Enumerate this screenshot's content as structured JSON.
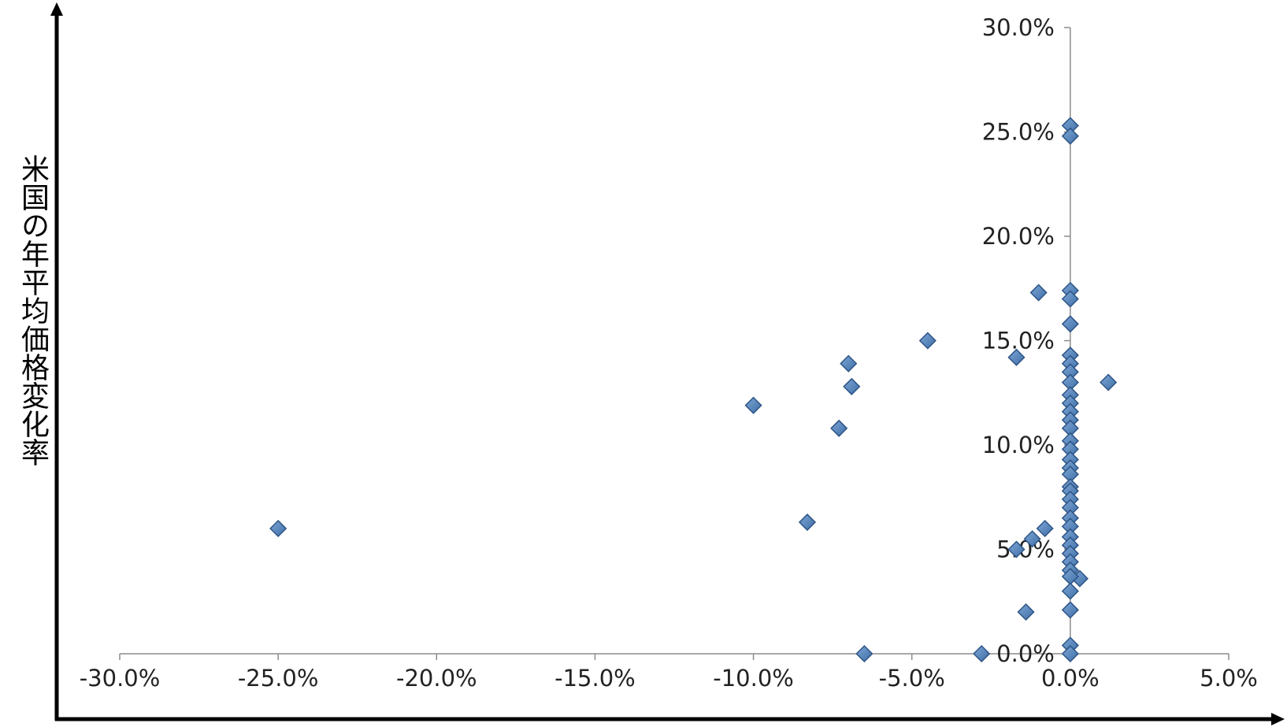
{
  "chart_data": {
    "type": "scatter",
    "title": "",
    "xlabel": "",
    "ylabel": "米国の年平均価格変化率",
    "xlim": [
      -30,
      5
    ],
    "ylim": [
      0,
      30
    ],
    "x_ticks": [
      "-30.0%",
      "-25.0%",
      "-20.0%",
      "-15.0%",
      "-10.0%",
      "-5.0%",
      "0.0%",
      "5.0%"
    ],
    "y_ticks": [
      "0.0%",
      "5.0%",
      "10.0%",
      "15.0%",
      "20.0%",
      "25.0%",
      "30.0%"
    ],
    "grid": false,
    "legend": "none",
    "marker_color": "#4f81bd",
    "points": [
      {
        "x": -25.0,
        "y": 6.0
      },
      {
        "x": -10.0,
        "y": 11.9
      },
      {
        "x": -8.3,
        "y": 6.3
      },
      {
        "x": -7.3,
        "y": 10.8
      },
      {
        "x": -7.0,
        "y": 13.9
      },
      {
        "x": -6.9,
        "y": 12.8
      },
      {
        "x": -6.5,
        "y": 0.0
      },
      {
        "x": -4.5,
        "y": 15.0
      },
      {
        "x": -2.8,
        "y": 0.0
      },
      {
        "x": -1.7,
        "y": 14.2
      },
      {
        "x": -1.7,
        "y": 5.0
      },
      {
        "x": -1.4,
        "y": 2.0
      },
      {
        "x": -1.0,
        "y": 17.3
      },
      {
        "x": -1.2,
        "y": 5.5
      },
      {
        "x": -0.8,
        "y": 6.0
      },
      {
        "x": 1.2,
        "y": 13.0
      },
      {
        "x": 0.3,
        "y": 3.6
      },
      {
        "x": 0.0,
        "y": 25.3
      },
      {
        "x": 0.0,
        "y": 24.8
      },
      {
        "x": 0.0,
        "y": 17.4
      },
      {
        "x": 0.0,
        "y": 17.0
      },
      {
        "x": 0.0,
        "y": 15.8
      },
      {
        "x": 0.0,
        "y": 14.3
      },
      {
        "x": 0.0,
        "y": 13.9
      },
      {
        "x": 0.0,
        "y": 13.5
      },
      {
        "x": 0.0,
        "y": 13.0
      },
      {
        "x": 0.0,
        "y": 12.4
      },
      {
        "x": 0.0,
        "y": 12.0
      },
      {
        "x": 0.0,
        "y": 11.6
      },
      {
        "x": 0.0,
        "y": 11.2
      },
      {
        "x": 0.0,
        "y": 10.8
      },
      {
        "x": 0.0,
        "y": 10.2
      },
      {
        "x": 0.0,
        "y": 9.8
      },
      {
        "x": 0.0,
        "y": 9.3
      },
      {
        "x": 0.0,
        "y": 8.9
      },
      {
        "x": 0.0,
        "y": 8.6
      },
      {
        "x": 0.0,
        "y": 8.0
      },
      {
        "x": 0.0,
        "y": 7.8
      },
      {
        "x": 0.0,
        "y": 7.4
      },
      {
        "x": 0.0,
        "y": 7.0
      },
      {
        "x": 0.0,
        "y": 6.5
      },
      {
        "x": 0.0,
        "y": 6.1
      },
      {
        "x": 0.0,
        "y": 5.6
      },
      {
        "x": 0.0,
        "y": 5.2
      },
      {
        "x": 0.0,
        "y": 4.8
      },
      {
        "x": 0.0,
        "y": 4.4
      },
      {
        "x": 0.0,
        "y": 4.0
      },
      {
        "x": 0.0,
        "y": 3.7
      },
      {
        "x": 0.0,
        "y": 3.0
      },
      {
        "x": 0.0,
        "y": 2.1
      },
      {
        "x": 0.0,
        "y": 0.4
      },
      {
        "x": 0.0,
        "y": 0.0
      }
    ]
  }
}
